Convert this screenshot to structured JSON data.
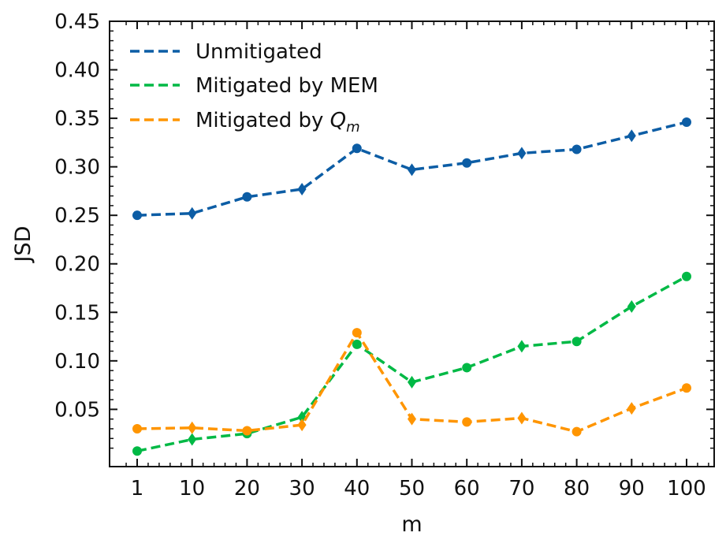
{
  "chart_data": {
    "type": "line",
    "title": "",
    "xlabel": "m",
    "ylabel": "JSD",
    "categories": [
      "1",
      "10",
      "20",
      "30",
      "40",
      "50",
      "60",
      "70",
      "80",
      "90",
      "100"
    ],
    "x": [
      1,
      10,
      20,
      30,
      40,
      50,
      60,
      70,
      80,
      90,
      100
    ],
    "ylim": [
      -0.009,
      0.45
    ],
    "yticks": [
      0.05,
      0.1,
      0.15,
      0.2,
      0.25,
      0.3,
      0.35,
      0.4,
      0.45
    ],
    "ytick_labels": [
      "0.05",
      "0.10",
      "0.15",
      "0.20",
      "0.25",
      "0.30",
      "0.35",
      "0.40",
      "0.45"
    ],
    "legend_position": "top-left",
    "series": [
      {
        "name": "Unmitigated",
        "name_main": "Unmitigated",
        "color": "#0c5da5",
        "values": [
          0.25,
          0.252,
          0.269,
          0.277,
          0.319,
          0.297,
          0.304,
          0.314,
          0.318,
          0.332,
          0.346
        ],
        "markers": [
          "circle",
          "diamond",
          "circle",
          "diamond",
          "circle",
          "diamond",
          "circle",
          "diamond",
          "circle",
          "diamond",
          "circle"
        ]
      },
      {
        "name": "Mitigated by MEM",
        "name_main": "Mitigated by MEM",
        "color": "#00b945",
        "values": [
          0.007,
          0.019,
          0.025,
          0.042,
          0.117,
          0.078,
          0.093,
          0.115,
          0.12,
          0.156,
          0.187
        ],
        "markers": [
          "circle",
          "diamond",
          "circle",
          "diamond",
          "circle",
          "diamond",
          "circle",
          "diamond",
          "circle",
          "diamond",
          "circle"
        ]
      },
      {
        "name": "Mitigated by Qm",
        "name_main": "Mitigated by ",
        "name_math": "Q",
        "name_sub": "m",
        "color": "#ff9500",
        "values": [
          0.03,
          0.031,
          0.028,
          0.034,
          0.129,
          0.04,
          0.037,
          0.041,
          0.027,
          0.051,
          0.072
        ],
        "markers": [
          "circle",
          "diamond",
          "circle",
          "diamond",
          "circle",
          "diamond",
          "circle",
          "diamond",
          "circle",
          "diamond",
          "circle"
        ]
      }
    ]
  }
}
